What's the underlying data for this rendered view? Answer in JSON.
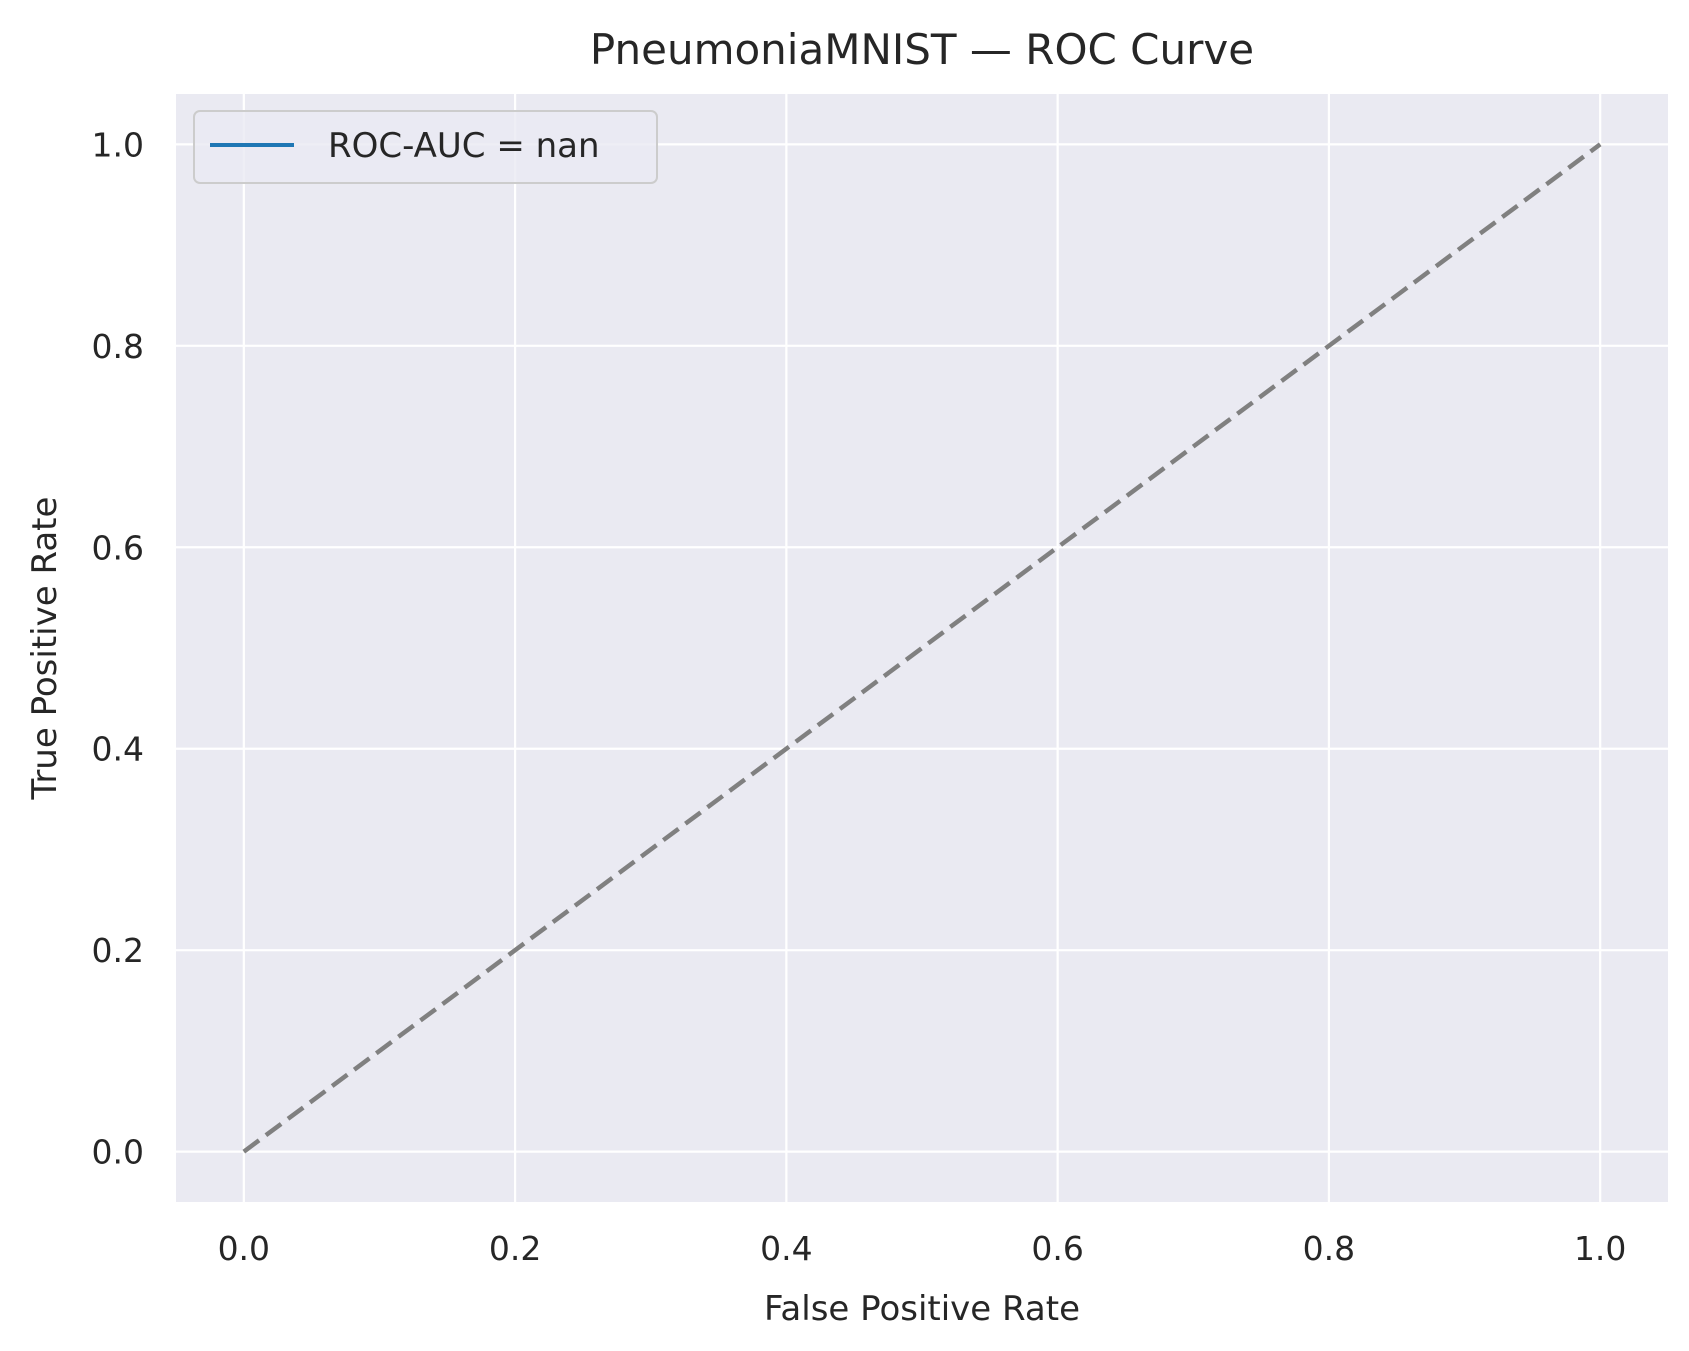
{
  "chart_data": {
    "type": "line",
    "title": "PneumoniaMNIST — ROC Curve",
    "xlabel": "False Positive Rate",
    "ylabel": "True Positive Rate",
    "xlim": [
      -0.05,
      1.05
    ],
    "ylim": [
      -0.05,
      1.05
    ],
    "xticks": [
      0.0,
      0.2,
      0.4,
      0.6,
      0.8,
      1.0
    ],
    "yticks": [
      0.0,
      0.2,
      0.4,
      0.6,
      0.8,
      1.0
    ],
    "x_tick_labels": [
      "0.0",
      "0.2",
      "0.4",
      "0.6",
      "0.8",
      "1.0"
    ],
    "y_tick_labels": [
      "0.0",
      "0.2",
      "0.4",
      "0.6",
      "0.8",
      "1.0"
    ],
    "grid": true,
    "background_color": "#eaeaf2",
    "legend_position": "upper-left",
    "series": [
      {
        "name": "ROC-AUC = nan",
        "color": "#1f77b4",
        "x": [],
        "y": []
      }
    ],
    "reference_line": {
      "x": [
        0.0,
        1.0
      ],
      "y": [
        0.0,
        1.0
      ],
      "color": "#808080",
      "style": "dashed"
    }
  }
}
